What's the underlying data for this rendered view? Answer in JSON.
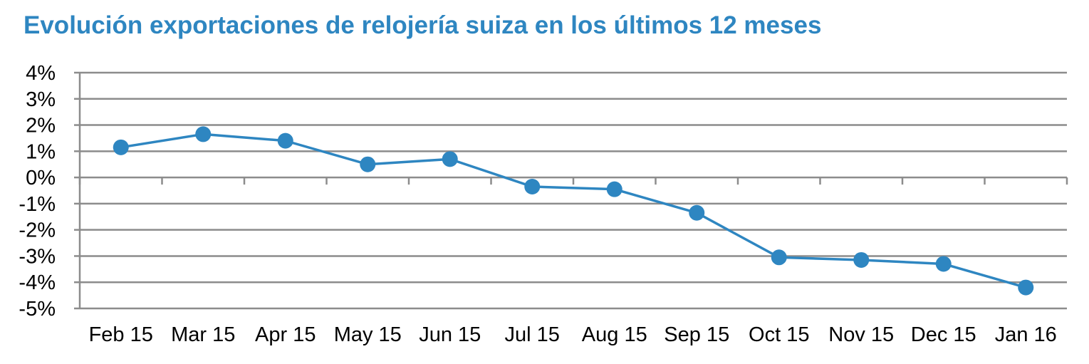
{
  "accent_color": "#2e86c1",
  "chart_data": {
    "type": "line",
    "title": "Evolución exportaciones de relojería suiza en los últimos 12 meses",
    "xlabel": "",
    "ylabel": "",
    "categories": [
      "Feb 15",
      "Mar 15",
      "Apr 15",
      "May 15",
      "Jun 15",
      "Jul 15",
      "Aug 15",
      "Sep 15",
      "Oct 15",
      "Nov 15",
      "Dec 15",
      "Jan 16"
    ],
    "series": [
      {
        "values": [
          1.15,
          1.65,
          1.4,
          0.5,
          0.7,
          -0.35,
          -0.45,
          -1.35,
          -3.05,
          -3.15,
          -3.3,
          -4.2
        ],
        "color": "#2e86c1"
      }
    ],
    "ylim": [
      -5,
      4
    ],
    "yticks": [
      4,
      3,
      2,
      1,
      0,
      -1,
      -2,
      -3,
      -4,
      -5
    ],
    "ytick_labels": [
      "4%",
      "3%",
      "2%",
      "1%",
      "0%",
      "-1%",
      "-2%",
      "-3%",
      "-4%",
      "-5%"
    ],
    "grid": true,
    "legend": "none"
  }
}
